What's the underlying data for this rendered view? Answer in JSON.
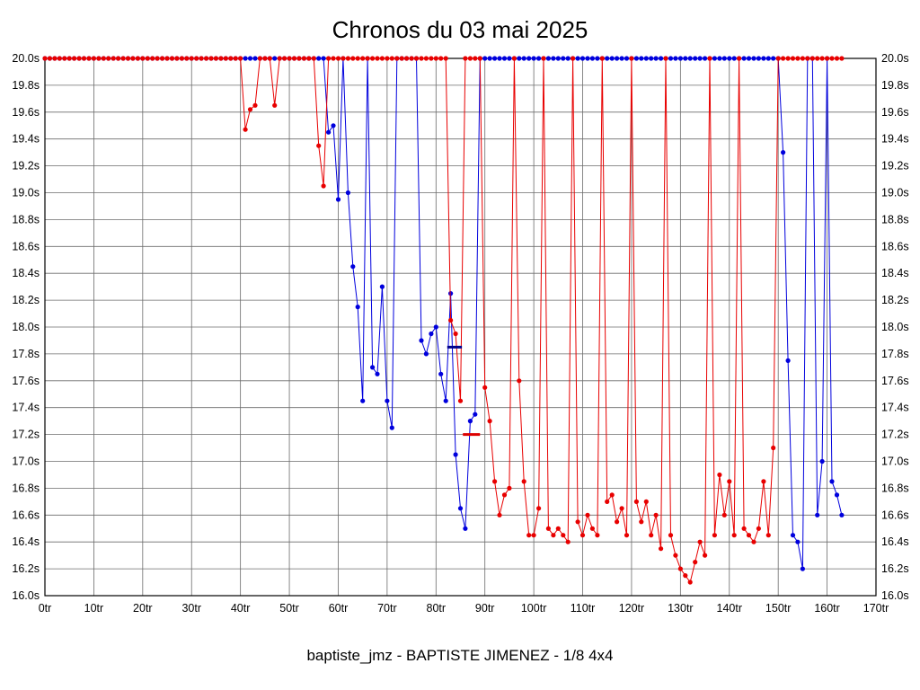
{
  "chart_data": {
    "type": "line",
    "title": "Chronos du 03 mai 2025",
    "footer": "baptiste_jmz - BAPTISTE JIMENEZ - 1/8 4x4",
    "x_range": [
      0,
      170
    ],
    "y_range": [
      16.0,
      20.0
    ],
    "x_tick_step": 10,
    "y_tick_step": 0.2,
    "grid": true,
    "legend": "none",
    "x_ticks": [
      "0tr",
      "10tr",
      "20tr",
      "30tr",
      "40tr",
      "50tr",
      "60tr",
      "70tr",
      "80tr",
      "90tr",
      "100tr",
      "110tr",
      "120tr",
      "130tr",
      "140tr",
      "150tr",
      "160tr",
      "170tr"
    ],
    "y_ticks": [
      "20.0s",
      "19.8s",
      "19.6s",
      "19.4s",
      "19.2s",
      "19.0s",
      "18.8s",
      "18.6s",
      "18.4s",
      "18.2s",
      "18.0s",
      "17.8s",
      "17.6s",
      "17.4s",
      "17.2s",
      "17.0s",
      "16.8s",
      "16.6s",
      "16.4s",
      "16.2s",
      "16.0s"
    ],
    "colors": {
      "red_series": "#e80000",
      "blue_series": "#0000dd",
      "grid": "#6b6b6b",
      "border": "#000000",
      "marker_navy": "#00008b",
      "marker_red": "#dd0000"
    },
    "series": [
      {
        "name": "blue-series",
        "color_key": "blue_series",
        "x_start": 0,
        "x_step": 1,
        "values": [
          20,
          20,
          20,
          20,
          20,
          20,
          20,
          20,
          20,
          20,
          20,
          20,
          20,
          20,
          20,
          20,
          20,
          20,
          20,
          20,
          20,
          20,
          20,
          20,
          20,
          20,
          20,
          20,
          20,
          20,
          20,
          20,
          20,
          20,
          20,
          20,
          20,
          20,
          20,
          20,
          20,
          20,
          20,
          20,
          20,
          20,
          20,
          20,
          20,
          20,
          20,
          20,
          20,
          20,
          20,
          20,
          20,
          20,
          19.45,
          19.5,
          18.95,
          20,
          19.0,
          18.45,
          18.15,
          17.45,
          20,
          17.7,
          17.65,
          18.3,
          17.45,
          17.25,
          20,
          20,
          20,
          20,
          20,
          17.9,
          17.8,
          17.95,
          18.0,
          17.65,
          17.45,
          18.25,
          17.05,
          16.65,
          16.5,
          17.3,
          17.35,
          20,
          20,
          20,
          20,
          20,
          20,
          20,
          20,
          20,
          20,
          20,
          20,
          20,
          20,
          20,
          20,
          20,
          20,
          20,
          20,
          20,
          20,
          20,
          20,
          20,
          20,
          20,
          20,
          20,
          20,
          20,
          20,
          20,
          20,
          20,
          20,
          20,
          20,
          20,
          20,
          20,
          20,
          20,
          20,
          20,
          20,
          20,
          20,
          20,
          20,
          20,
          20,
          20,
          20,
          20,
          20,
          20,
          20,
          20,
          20,
          20,
          20,
          19.3,
          17.75,
          16.45,
          16.4,
          16.2,
          20,
          20,
          16.6,
          17.0,
          20,
          16.85,
          16.75,
          16.6
        ]
      },
      {
        "name": "red-series",
        "color_key": "red_series",
        "x_start": 0,
        "x_step": 1,
        "values": [
          20,
          20,
          20,
          20,
          20,
          20,
          20,
          20,
          20,
          20,
          20,
          20,
          20,
          20,
          20,
          20,
          20,
          20,
          20,
          20,
          20,
          20,
          20,
          20,
          20,
          20,
          20,
          20,
          20,
          20,
          20,
          20,
          20,
          20,
          20,
          20,
          20,
          20,
          20,
          20,
          20,
          19.47,
          19.62,
          19.65,
          20,
          20,
          20,
          19.65,
          20,
          20,
          20,
          20,
          20,
          20,
          20,
          20,
          19.35,
          19.05,
          20,
          20,
          20,
          20,
          20,
          20,
          20,
          20,
          20,
          20,
          20,
          20,
          20,
          20,
          20,
          20,
          20,
          20,
          20,
          20,
          20,
          20,
          20,
          20,
          20,
          18.05,
          17.95,
          17.45,
          20,
          20,
          20,
          20,
          17.55,
          17.3,
          16.85,
          16.6,
          16.75,
          16.8,
          20,
          17.6,
          16.85,
          16.45,
          16.45,
          16.65,
          20,
          16.5,
          16.45,
          16.5,
          16.45,
          16.4,
          20,
          16.55,
          16.45,
          16.6,
          16.5,
          16.45,
          20,
          16.7,
          16.75,
          16.55,
          16.65,
          16.45,
          20,
          16.7,
          16.55,
          16.7,
          16.45,
          16.6,
          16.35,
          20,
          16.45,
          16.3,
          16.2,
          16.15,
          16.1,
          16.25,
          16.4,
          16.3,
          20,
          16.45,
          16.9,
          16.6,
          16.85,
          16.45,
          20,
          16.5,
          16.45,
          16.4,
          16.5,
          16.85,
          16.45,
          17.1,
          20,
          20,
          20,
          20,
          20,
          20,
          20,
          20,
          20,
          20,
          20,
          20,
          20,
          20
        ]
      }
    ],
    "markers": [
      {
        "name": "marker-dash-navy",
        "y": 17.85,
        "x1": 82.3,
        "x2": 85.3,
        "color_key": "marker_navy"
      },
      {
        "name": "marker-dash-red",
        "y": 17.2,
        "x1": 85.5,
        "x2": 89.0,
        "color_key": "marker_red"
      }
    ]
  }
}
